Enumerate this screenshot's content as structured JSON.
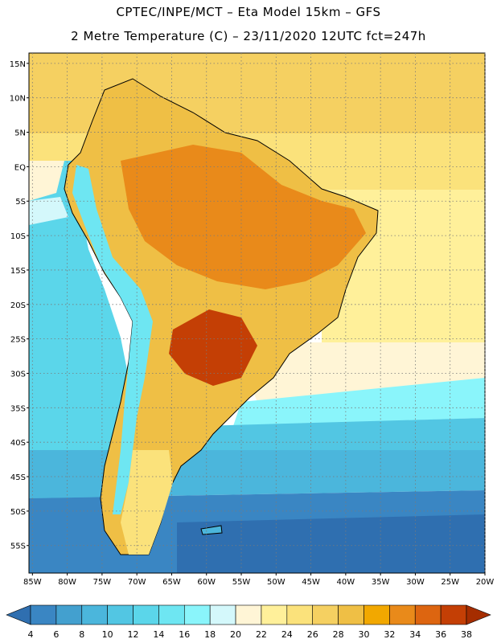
{
  "header": {
    "title_line1": "CPTEC/INPE/MCT –  Eta Model 15km – GFS",
    "title_line2": "2 Metre Temperature (C) – 23/11/2020 12UTC fct=247h"
  },
  "map": {
    "lat_labels": [
      "15N",
      "10N",
      "5N",
      "EQ",
      "5S",
      "10S",
      "15S",
      "20S",
      "25S",
      "30S",
      "35S",
      "40S",
      "45S",
      "50S",
      "55S"
    ],
    "lon_labels": [
      "85W",
      "80W",
      "75W",
      "70W",
      "65W",
      "60W",
      "55W",
      "50W",
      "45W",
      "40W",
      "35W",
      "30W",
      "25W",
      "20W"
    ],
    "lat_range": [
      16.5,
      -59.0
    ],
    "lon_range": [
      -85.5,
      -20.0
    ]
  },
  "colorbar": {
    "labels": [
      "4",
      "6",
      "8",
      "10",
      "12",
      "14",
      "16",
      "18",
      "20",
      "22",
      "24",
      "26",
      "28",
      "30",
      "32",
      "34",
      "36",
      "38"
    ],
    "colors": [
      "#2f6fb0",
      "#3a86c3",
      "#43a0cf",
      "#4bb6dc",
      "#52c6e3",
      "#5bd6ea",
      "#6ee6f2",
      "#8af5fb",
      "#d4f8fb",
      "#fff5d6",
      "#fff09a",
      "#fbe27b",
      "#f5d061",
      "#efbf45",
      "#f2a800",
      "#e98a1a",
      "#dd6510",
      "#c43f05",
      "#a52d00"
    ]
  }
}
